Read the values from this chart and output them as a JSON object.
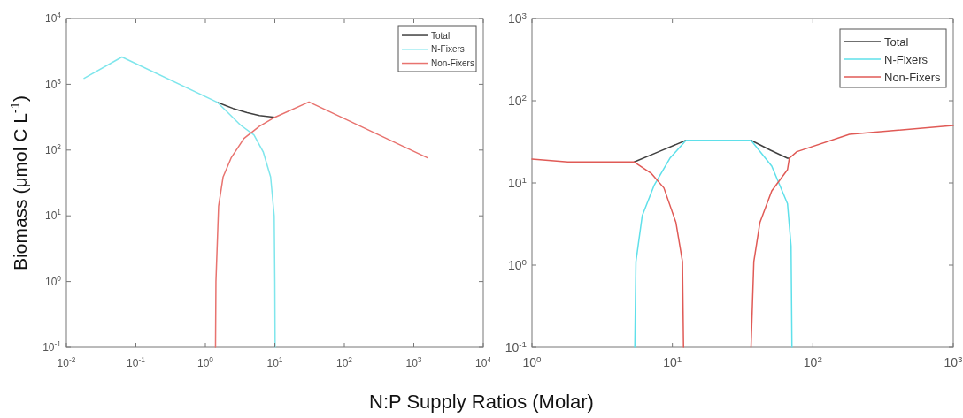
{
  "chart_data": [
    {
      "type": "line",
      "ylabel": "Biomass (μmol C L$^{-1}$)",
      "xlabel": "N:P Supply Ratios (Molar)",
      "log": "xy",
      "legend": "top right",
      "xlim": [
        0.01,
        10000
      ],
      "ylim": [
        0.1,
        10000
      ],
      "xticks": [
        {
          "value": 0.01,
          "label": "10$^{-2}$"
        },
        {
          "value": 0.1,
          "label": "10$^{-1}$"
        },
        {
          "value": 1,
          "label": "10$^{0}$"
        },
        {
          "value": 10,
          "label": "10$^{1}$"
        },
        {
          "value": 100,
          "label": "10$^{2}$"
        },
        {
          "value": 1000,
          "label": "10$^{3}$"
        },
        {
          "value": 10000,
          "label": "10$^{4}$"
        }
      ],
      "yticks": [
        {
          "value": 0.1,
          "label": "10$^{-1}$"
        },
        {
          "value": 1,
          "label": "10$^{0}$"
        },
        {
          "value": 10,
          "label": "10$^{1}$"
        },
        {
          "value": 100,
          "label": "10$^{2}$"
        },
        {
          "value": 1000,
          "label": "10$^{3}$"
        },
        {
          "value": 10000,
          "label": "10$^{4}$"
        }
      ],
      "series": [
        {
          "name": "Total",
          "color": "#404040",
          "x": [
            1.5,
            2.5,
            4,
            6,
            10
          ],
          "values": [
            530,
            430,
            370,
            335,
            315
          ]
        },
        {
          "name": "N-Fixers",
          "color": "#7fe6ec",
          "x": [
            0.018,
            0.063,
            1.5,
            3.2,
            5,
            6.8,
            8.7,
            9.8,
            10.0,
            10.1
          ],
          "values": [
            1230,
            2600,
            530,
            240,
            170,
            94,
            39,
            10,
            1,
            0.1
          ]
        },
        {
          "name": "Non-Fixers",
          "color": "#e8736f",
          "x": [
            1.4,
            1.42,
            1.55,
            1.8,
            2.35,
            3.6,
            6,
            10,
            31,
            1580
          ],
          "values": [
            0.1,
            1,
            14,
            39,
            76,
            150,
            230,
            315,
            540,
            76
          ]
        }
      ]
    },
    {
      "type": "line",
      "log": "xy",
      "legend": "top right",
      "xlim": [
        1,
        1000
      ],
      "ylim": [
        0.1,
        1000
      ],
      "xticks": [
        {
          "value": 1,
          "label": "10$^{0}$"
        },
        {
          "value": 10,
          "label": "10$^{1}$"
        },
        {
          "value": 100,
          "label": "10$^{2}$"
        },
        {
          "value": 1000,
          "label": "10$^{3}$"
        }
      ],
      "yticks": [
        {
          "value": 0.1,
          "label": "10$^{-1}$"
        },
        {
          "value": 1,
          "label": "10$^{0}$"
        },
        {
          "value": 10,
          "label": "10$^{1}$"
        },
        {
          "value": 100,
          "label": "10$^{2}$"
        },
        {
          "value": 1000,
          "label": "10$^{3}$"
        }
      ],
      "series": [
        {
          "name": "Total",
          "color": "#404040",
          "x": [
            5.35,
            8,
            12.5,
            36.3,
            50,
            66,
            68
          ],
          "values": [
            18,
            24,
            33,
            33,
            25,
            20,
            20
          ]
        },
        {
          "name": "N-Fixers",
          "color": "#5fe0ea",
          "x": [
            5.4,
            5.5,
            6.1,
            7.4,
            9.6,
            12.5,
            36.3,
            51,
            66,
            70,
            71
          ],
          "values": [
            0.1,
            1.1,
            4,
            9.3,
            20,
            33,
            33,
            16,
            5.6,
            1.7,
            0.1
          ]
        },
        {
          "name": "Non-Fixers",
          "color": "#e05a56",
          "x": [
            1,
            1.8,
            5.35,
            7.1,
            8.7,
            10.6,
            11.8,
            12,
            24,
            36.3,
            38,
            42,
            51,
            66,
            68,
            77,
            182,
            1000
          ],
          "values": [
            19.5,
            18,
            18,
            13,
            8.7,
            3.3,
            1.1,
            0.1,
            null,
            0.1,
            1.1,
            3.3,
            8,
            14.5,
            20,
            24,
            39,
            50
          ]
        }
      ]
    }
  ]
}
